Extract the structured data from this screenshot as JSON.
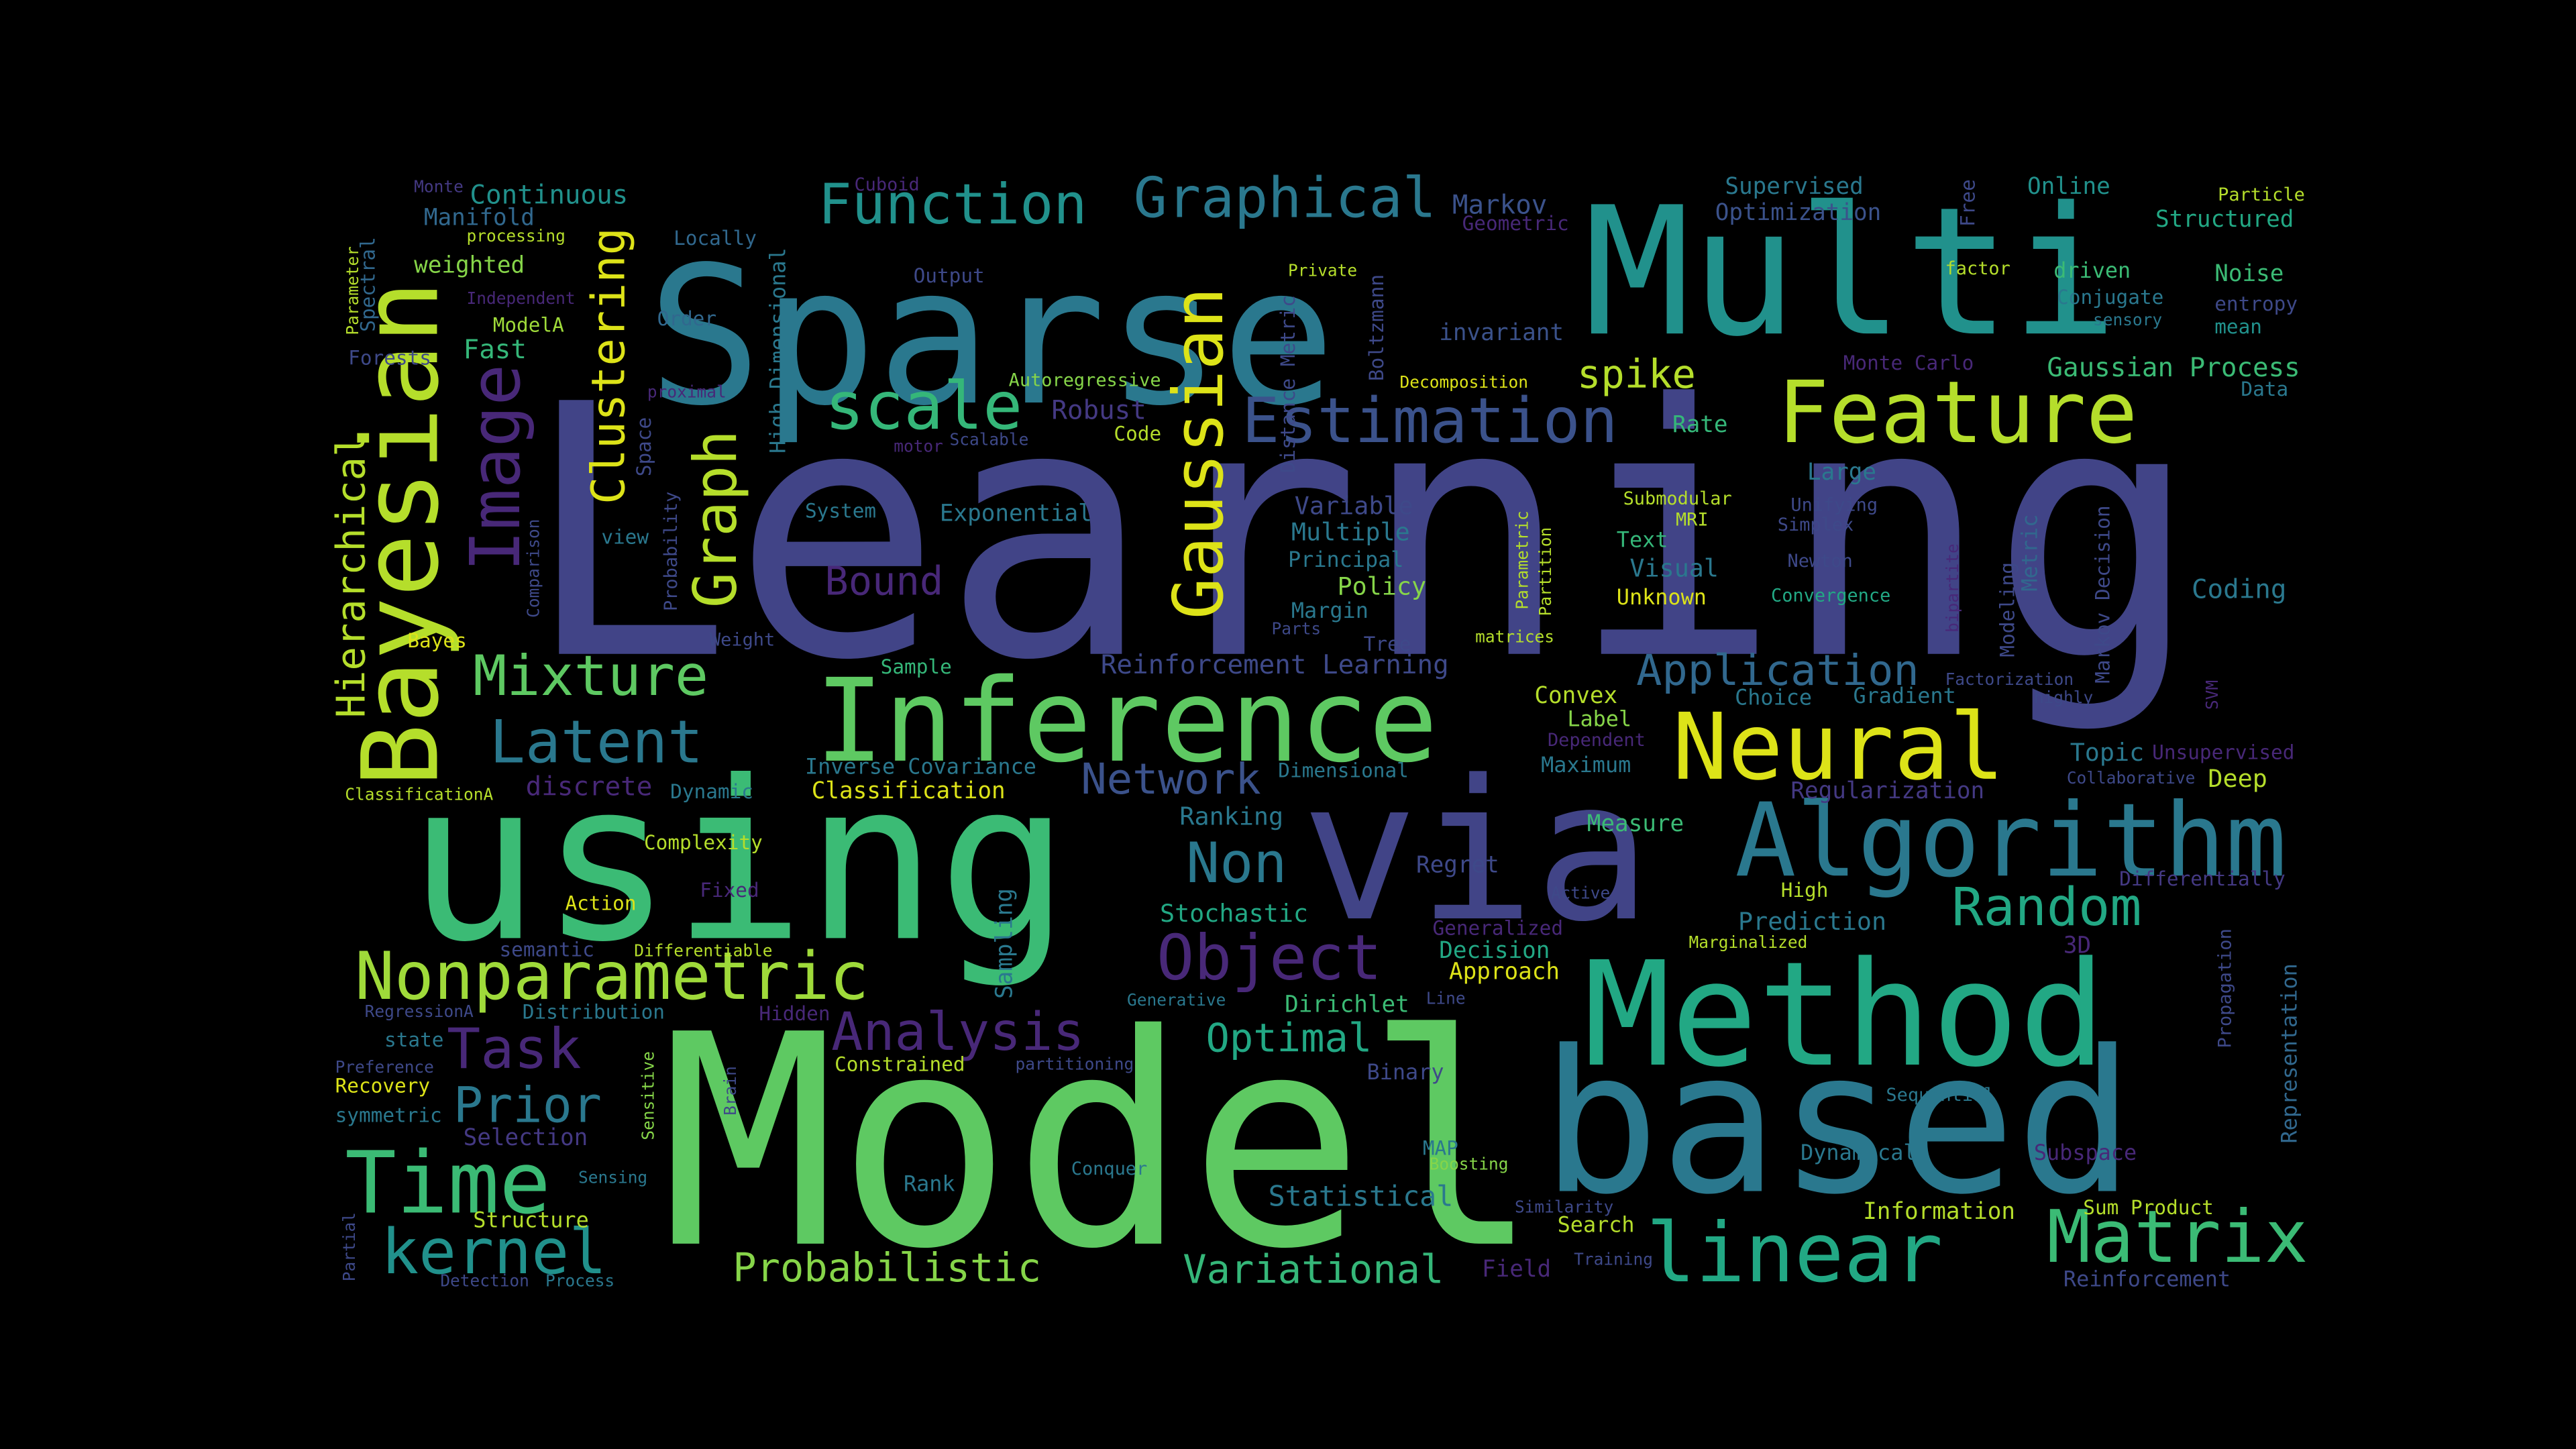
{
  "background": "#000000",
  "words": [
    {
      "text": "Learning",
      "color": "#414487"
    },
    {
      "text": "Model",
      "color": "#5ec962"
    },
    {
      "text": "using",
      "color": "#3bbb75"
    },
    {
      "text": "via",
      "color": "#414487"
    },
    {
      "text": "Sparse",
      "color": "#2a788e"
    },
    {
      "text": "Multi",
      "color": "#21918c"
    },
    {
      "text": "based",
      "color": "#2a788e"
    },
    {
      "text": "Method",
      "color": "#22a884"
    },
    {
      "text": "Inference",
      "color": "#5ec962"
    },
    {
      "text": "Bayesian",
      "color": "#b5de2b"
    },
    {
      "text": "Algorithm",
      "color": "#2a788e"
    },
    {
      "text": "Feature",
      "color": "#b5de2b"
    },
    {
      "text": "Neural",
      "color": "#dde318"
    },
    {
      "text": "linear",
      "color": "#22a884"
    },
    {
      "text": "Matrix",
      "color": "#3bbb75"
    },
    {
      "text": "Nonparametric",
      "color": "#9fda3a"
    },
    {
      "text": "Object",
      "color": "#482878"
    },
    {
      "text": "Estimation",
      "color": "#3b528b"
    },
    {
      "text": "Gaussian",
      "color": "#dde318"
    },
    {
      "text": "scale",
      "color": "#35b779"
    },
    {
      "text": "Image",
      "color": "#482878"
    },
    {
      "text": "Graph",
      "color": "#b5de2b"
    },
    {
      "text": "Clustering",
      "color": "#dde318"
    },
    {
      "text": "Latent",
      "color": "#2a788e"
    },
    {
      "text": "Mixture",
      "color": "#5ec962"
    },
    {
      "text": "Time",
      "color": "#3bbb75"
    },
    {
      "text": "kernel",
      "color": "#21918c"
    },
    {
      "text": "Task",
      "color": "#482878"
    },
    {
      "text": "Prior",
      "color": "#2a788e"
    },
    {
      "text": "Random",
      "color": "#22a884"
    },
    {
      "text": "Non",
      "color": "#2a788e"
    },
    {
      "text": "Analysis",
      "color": "#482878"
    },
    {
      "text": "Network",
      "color": "#3b528b"
    },
    {
      "text": "Application",
      "color": "#31688e"
    },
    {
      "text": "Function",
      "color": "#21918c"
    },
    {
      "text": "Graphical",
      "color": "#2a788e"
    },
    {
      "text": "Probabilistic",
      "color": "#86d549"
    },
    {
      "text": "Variational",
      "color": "#35b779"
    },
    {
      "text": "Optimal",
      "color": "#22a884"
    },
    {
      "text": "Hierarchical",
      "color": "#b5de2b"
    },
    {
      "text": "spike",
      "color": "#b5de2b"
    },
    {
      "text": "Bound",
      "color": "#482878"
    },
    {
      "text": "Continuous",
      "color": "#21918c"
    },
    {
      "text": "Manifold",
      "color": "#31688e"
    },
    {
      "text": "weighted",
      "color": "#86d549"
    },
    {
      "text": "Fast",
      "color": "#35b779"
    },
    {
      "text": "Forests",
      "color": "#3e4989"
    },
    {
      "text": "ModelA",
      "color": "#9fda3a"
    },
    {
      "text": "Order",
      "color": "#31688e"
    },
    {
      "text": "Output",
      "color": "#3e4989"
    },
    {
      "text": "Locally",
      "color": "#31688e"
    },
    {
      "text": "processing",
      "color": "#b5de2b"
    },
    {
      "text": "Independent",
      "color": "#482878"
    },
    {
      "text": "Monte",
      "color": "#443983"
    },
    {
      "text": "Spectral",
      "color": "#31688e"
    },
    {
      "text": "Parameter",
      "color": "#b5de2b"
    },
    {
      "text": "Cuboid",
      "color": "#482878"
    },
    {
      "text": "High Dimensional",
      "color": "#2a788e"
    },
    {
      "text": "Markov",
      "color": "#3b528b"
    },
    {
      "text": "Geometric",
      "color": "#482878"
    },
    {
      "text": "Supervised",
      "color": "#2a788e"
    },
    {
      "text": "Optimization",
      "color": "#3b528b"
    },
    {
      "text": "Free",
      "color": "#3e4989"
    },
    {
      "text": "Online",
      "color": "#21918c"
    },
    {
      "text": "Particle",
      "color": "#b5de2b"
    },
    {
      "text": "Structured",
      "color": "#22a884"
    },
    {
      "text": "factor",
      "color": "#b5de2b"
    },
    {
      "text": "driven",
      "color": "#3bbb75"
    },
    {
      "text": "Conjugate",
      "color": "#2a788e"
    },
    {
      "text": "sensory",
      "color": "#2a788e"
    },
    {
      "text": "Noise",
      "color": "#3bbb75"
    },
    {
      "text": "entropy",
      "color": "#3e4989"
    },
    {
      "text": "mean",
      "color": "#21918c"
    },
    {
      "text": "Private",
      "color": "#b5de2b"
    },
    {
      "text": "Boltzmann",
      "color": "#3e4989"
    },
    {
      "text": "invariant",
      "color": "#3b528b"
    },
    {
      "text": "Distance Metric",
      "color": "#3e4989"
    },
    {
      "text": "Decomposition",
      "color": "#dde318"
    },
    {
      "text": "Monte Carlo",
      "color": "#482878"
    },
    {
      "text": "Gaussian Process",
      "color": "#3bbb75"
    },
    {
      "text": "Data",
      "color": "#2a788e"
    },
    {
      "text": "Autoregressive",
      "color": "#86d549"
    },
    {
      "text": "Robust",
      "color": "#443983"
    },
    {
      "text": "Code",
      "color": "#b5de2b"
    },
    {
      "text": "proximal",
      "color": "#482878"
    },
    {
      "text": "Scalable",
      "color": "#3e4989"
    },
    {
      "text": "motor",
      "color": "#482878"
    },
    {
      "text": "Space",
      "color": "#3e4989"
    },
    {
      "text": "Probability",
      "color": "#3e4989"
    },
    {
      "text": "Comparison",
      "color": "#3e4989"
    },
    {
      "text": "view",
      "color": "#2a788e"
    },
    {
      "text": "System",
      "color": "#2a788e"
    },
    {
      "text": "Exponential",
      "color": "#2a788e"
    },
    {
      "text": "Rate",
      "color": "#35b779"
    },
    {
      "text": "Large",
      "color": "#2a788e"
    },
    {
      "text": "Submodular",
      "color": "#b5de2b"
    },
    {
      "text": "MRI",
      "color": "#b5de2b"
    },
    {
      "text": "Unifying",
      "color": "#3e4989"
    },
    {
      "text": "Simplex",
      "color": "#3e4989"
    },
    {
      "text": "Variable",
      "color": "#3e4989"
    },
    {
      "text": "Multiple",
      "color": "#2a788e"
    },
    {
      "text": "Principal",
      "color": "#2a788e"
    },
    {
      "text": "Policy",
      "color": "#86d549"
    },
    {
      "text": "Margin",
      "color": "#2a788e"
    },
    {
      "text": "Parts",
      "color": "#3e4989"
    },
    {
      "text": "Tree",
      "color": "#3e4989"
    },
    {
      "text": "Parametric",
      "color": "#b5de2b"
    },
    {
      "text": "Partition",
      "color": "#b5de2b"
    },
    {
      "text": "matrices",
      "color": "#b5de2b"
    },
    {
      "text": "Text",
      "color": "#35b779"
    },
    {
      "text": "Visual",
      "color": "#2a788e"
    },
    {
      "text": "Unknown",
      "color": "#dde318"
    },
    {
      "text": "Newton",
      "color": "#3e4989"
    },
    {
      "text": "Convergence",
      "color": "#22a884"
    },
    {
      "text": "Metric",
      "color": "#31688e"
    },
    {
      "text": "Modeling",
      "color": "#3e4989"
    },
    {
      "text": "bipartite",
      "color": "#482878"
    },
    {
      "text": "Markov Decision",
      "color": "#3e4989"
    },
    {
      "text": "Coding",
      "color": "#2a788e"
    },
    {
      "text": "SVM",
      "color": "#482878"
    },
    {
      "text": "Factorization",
      "color": "#3e4989"
    },
    {
      "text": "highly",
      "color": "#3e4989"
    },
    {
      "text": "Gradient",
      "color": "#2a788e"
    },
    {
      "text": "Choice",
      "color": "#2a788e"
    },
    {
      "text": "Topic",
      "color": "#2a788e"
    },
    {
      "text": "Unsupervised",
      "color": "#482878"
    },
    {
      "text": "Collaborative",
      "color": "#3e4989"
    },
    {
      "text": "Deep",
      "color": "#b5de2b"
    },
    {
      "text": "Regularization",
      "color": "#443983"
    },
    {
      "text": "Bayes",
      "color": "#dde318"
    },
    {
      "text": "Weight",
      "color": "#3e4989"
    },
    {
      "text": "Sample",
      "color": "#35b779"
    },
    {
      "text": "Reinforcement Learning",
      "color": "#3e4989"
    },
    {
      "text": "Convex",
      "color": "#b5de2b"
    },
    {
      "text": "Label",
      "color": "#86d549"
    },
    {
      "text": "Dependent",
      "color": "#482878"
    },
    {
      "text": "Maximum",
      "color": "#2a788e"
    },
    {
      "text": "Inverse Covariance",
      "color": "#2a788e"
    },
    {
      "text": "Dimensional",
      "color": "#2a788e"
    },
    {
      "text": "ClassificationA",
      "color": "#b5de2b"
    },
    {
      "text": "discrete",
      "color": "#482878"
    },
    {
      "text": "Dynamic",
      "color": "#2a788e"
    },
    {
      "text": "Classification",
      "color": "#dde318"
    },
    {
      "text": "Ranking",
      "color": "#2a788e"
    },
    {
      "text": "Measure",
      "color": "#3bbb75"
    },
    {
      "text": "Complexity",
      "color": "#b5de2b"
    },
    {
      "text": "Regret",
      "color": "#3e4989"
    },
    {
      "text": "Active",
      "color": "#3e4989"
    },
    {
      "text": "Fixed",
      "color": "#482878"
    },
    {
      "text": "Differentially",
      "color": "#443983"
    },
    {
      "text": "Action",
      "color": "#dde318"
    },
    {
      "text": "Stochastic",
      "color": "#22a884"
    },
    {
      "text": "High",
      "color": "#b5de2b"
    },
    {
      "text": "Sampling",
      "color": "#2a788e"
    },
    {
      "text": "Generalized",
      "color": "#482878"
    },
    {
      "text": "Decision",
      "color": "#22a884"
    },
    {
      "text": "Prediction",
      "color": "#2a788e"
    },
    {
      "text": "Marginalized",
      "color": "#b5de2b"
    },
    {
      "text": "3D",
      "color": "#482878"
    },
    {
      "text": "Approach",
      "color": "#dde318"
    },
    {
      "text": "semantic",
      "color": "#3e4989"
    },
    {
      "text": "Differentiable",
      "color": "#b5de2b"
    },
    {
      "text": "Distribution",
      "color": "#2a788e"
    },
    {
      "text": "Hidden",
      "color": "#482878"
    },
    {
      "text": "Generative",
      "color": "#2a788e"
    },
    {
      "text": "Dirichlet",
      "color": "#3bbb75"
    },
    {
      "text": "Line",
      "color": "#3e4989"
    },
    {
      "text": "Propagation",
      "color": "#3e4989"
    },
    {
      "text": "Representation",
      "color": "#31688e"
    },
    {
      "text": "RegressionA",
      "color": "#3e4989"
    },
    {
      "text": "state",
      "color": "#2a788e"
    },
    {
      "text": "Preference",
      "color": "#3e4989"
    },
    {
      "text": "Recovery",
      "color": "#dde318"
    },
    {
      "text": "Constrained",
      "color": "#b5de2b"
    },
    {
      "text": "partitioning",
      "color": "#3e4989"
    },
    {
      "text": "Binary",
      "color": "#3e4989"
    },
    {
      "text": "Sequential",
      "color": "#2a788e"
    },
    {
      "text": "symmetric",
      "color": "#2a788e"
    },
    {
      "text": "Sensitive",
      "color": "#86d549"
    },
    {
      "text": "Brain",
      "color": "#3e4989"
    },
    {
      "text": "Selection",
      "color": "#443983"
    },
    {
      "text": "MAP",
      "color": "#2a788e"
    },
    {
      "text": "Boosting",
      "color": "#86d549"
    },
    {
      "text": "Dynamical",
      "color": "#2a788e"
    },
    {
      "text": "Subspace",
      "color": "#482878"
    },
    {
      "text": "Sensing",
      "color": "#2a788e"
    },
    {
      "text": "Conquer",
      "color": "#2a788e"
    },
    {
      "text": "Rank",
      "color": "#2a788e"
    },
    {
      "text": "Statistical",
      "color": "#2a788e"
    },
    {
      "text": "Similarity",
      "color": "#3e4989"
    },
    {
      "text": "Search",
      "color": "#b5de2b"
    },
    {
      "text": "Information",
      "color": "#b5de2b"
    },
    {
      "text": "Sum Product",
      "color": "#b5de2b"
    },
    {
      "text": "Partial",
      "color": "#3e4989"
    },
    {
      "text": "Structure",
      "color": "#b5de2b"
    },
    {
      "text": "Detection",
      "color": "#3e4989"
    },
    {
      "text": "Process",
      "color": "#2a788e"
    },
    {
      "text": "Field",
      "color": "#482878"
    },
    {
      "text": "Training",
      "color": "#3e4989"
    },
    {
      "text": "Reinforcement",
      "color": "#3e4989"
    }
  ]
}
